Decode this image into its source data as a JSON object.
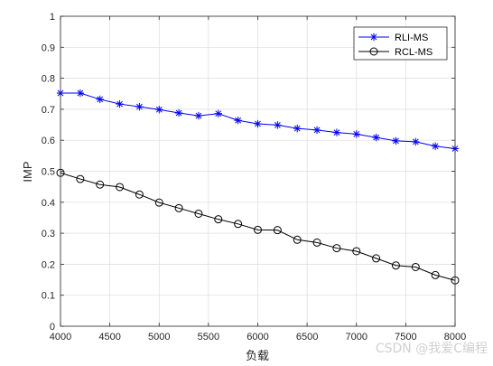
{
  "chart_data": {
    "type": "line",
    "xlabel": "负载",
    "ylabel": "IMP",
    "xlim": [
      4000,
      8000
    ],
    "ylim": [
      0,
      1
    ],
    "xticks": [
      4000,
      4500,
      5000,
      5500,
      6000,
      6500,
      7000,
      7500,
      8000
    ],
    "yticks": [
      0,
      0.1,
      0.2,
      0.3,
      0.4,
      0.5,
      0.6,
      0.7,
      0.8,
      0.9,
      1
    ],
    "ytick_labels": [
      "0",
      "0.1",
      "0.2",
      "0.3",
      "0.4",
      "0.5",
      "0.6",
      "0.7",
      "0.8",
      "0.9",
      "1"
    ],
    "grid": true,
    "legend_position": "top-right",
    "x": [
      4000,
      4200,
      4400,
      4600,
      4800,
      5000,
      5200,
      5400,
      5600,
      5800,
      6000,
      6200,
      6400,
      6600,
      6800,
      7000,
      7200,
      7400,
      7600,
      7800,
      8000
    ],
    "series": [
      {
        "name": "RLI-MS",
        "color": "#0000ff",
        "marker": "asterisk",
        "values": [
          0.752,
          0.752,
          0.732,
          0.717,
          0.708,
          0.699,
          0.688,
          0.679,
          0.686,
          0.664,
          0.653,
          0.649,
          0.638,
          0.633,
          0.625,
          0.62,
          0.609,
          0.598,
          0.595,
          0.581,
          0.573
        ]
      },
      {
        "name": "RCL-MS",
        "color": "#000000",
        "marker": "circle",
        "values": [
          0.495,
          0.475,
          0.457,
          0.449,
          0.425,
          0.399,
          0.381,
          0.363,
          0.345,
          0.33,
          0.311,
          0.31,
          0.279,
          0.27,
          0.252,
          0.242,
          0.219,
          0.196,
          0.191,
          0.165,
          0.148
        ]
      }
    ]
  },
  "watermark": "CSDN @我爱C编程"
}
